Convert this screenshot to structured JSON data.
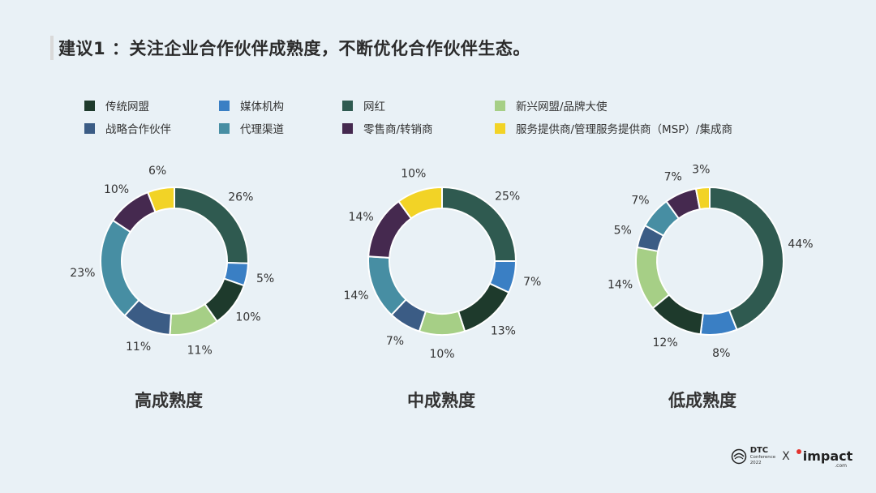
{
  "title": "建议1 ：关注企业合作伙伴成熟度，不断优化合作伙伴生态。",
  "legend": [
    {
      "label": "传统网盟",
      "color": "#1e3a2c"
    },
    {
      "label": "媒体机构",
      "color": "#3a7fc4"
    },
    {
      "label": "网红",
      "color": "#2f5a50"
    },
    {
      "label": "新兴网盟/品牌大使",
      "color": "#a6cf86"
    },
    {
      "label": "战略合作伙伴",
      "color": "#3b5c85"
    },
    {
      "label": "代理渠道",
      "color": "#478ea3"
    },
    {
      "label": "零售商/转销商",
      "color": "#45294f"
    },
    {
      "label": "服务提供商/管理服务提供商（MSP）/集成商",
      "color": "#f2d326"
    }
  ],
  "chart_data": [
    {
      "type": "pie",
      "title": "高成熟度",
      "slices": [
        {
          "name": "网红",
          "value": 26,
          "label": "26%"
        },
        {
          "name": "媒体机构",
          "value": 5,
          "label": "5%"
        },
        {
          "name": "传统网盟",
          "value": 10,
          "label": "10%"
        },
        {
          "name": "新兴网盟/品牌大使",
          "value": 11,
          "label": "11%"
        },
        {
          "name": "战略合作伙伴",
          "value": 11,
          "label": "11%"
        },
        {
          "name": "代理渠道",
          "value": 23,
          "label": "23%"
        },
        {
          "name": "零售商/转销商",
          "value": 10,
          "label": "10%"
        },
        {
          "name": "服务提供商/管理服务提供商（MSP）/集成商",
          "value": 6,
          "label": "6%"
        }
      ]
    },
    {
      "type": "pie",
      "title": "中成熟度",
      "slices": [
        {
          "name": "网红",
          "value": 25,
          "label": "25%"
        },
        {
          "name": "媒体机构",
          "value": 7,
          "label": "7%"
        },
        {
          "name": "传统网盟",
          "value": 13,
          "label": "13%"
        },
        {
          "name": "新兴网盟/品牌大使",
          "value": 10,
          "label": "10%"
        },
        {
          "name": "战略合作伙伴",
          "value": 7,
          "label": "7%"
        },
        {
          "name": "代理渠道",
          "value": 14,
          "label": "14%"
        },
        {
          "name": "零售商/转销商",
          "value": 14,
          "label": "14%"
        },
        {
          "name": "服务提供商/管理服务提供商（MSP）/集成商",
          "value": 10,
          "label": "10%"
        }
      ]
    },
    {
      "type": "pie",
      "title": "低成熟度",
      "slices": [
        {
          "name": "网红",
          "value": 44,
          "label": "44%"
        },
        {
          "name": "媒体机构",
          "value": 8,
          "label": "8%"
        },
        {
          "name": "传统网盟",
          "value": 12,
          "label": "12%"
        },
        {
          "name": "新兴网盟/品牌大使",
          "value": 14,
          "label": "14%"
        },
        {
          "name": "战略合作伙伴",
          "value": 5,
          "label": "5%"
        },
        {
          "name": "代理渠道",
          "value": 7,
          "label": "7%"
        },
        {
          "name": "零售商/转销商",
          "value": 7,
          "label": "7%"
        },
        {
          "name": "服务提供商/管理服务提供商（MSP）/集成商",
          "value": 3,
          "label": "3%"
        }
      ]
    }
  ],
  "footer": {
    "dtc_main": "DTC",
    "dtc_sub1": "Conference",
    "dtc_sub2": "2022",
    "separator": "X",
    "impact_word": "impact",
    "impact_com": ".com"
  }
}
